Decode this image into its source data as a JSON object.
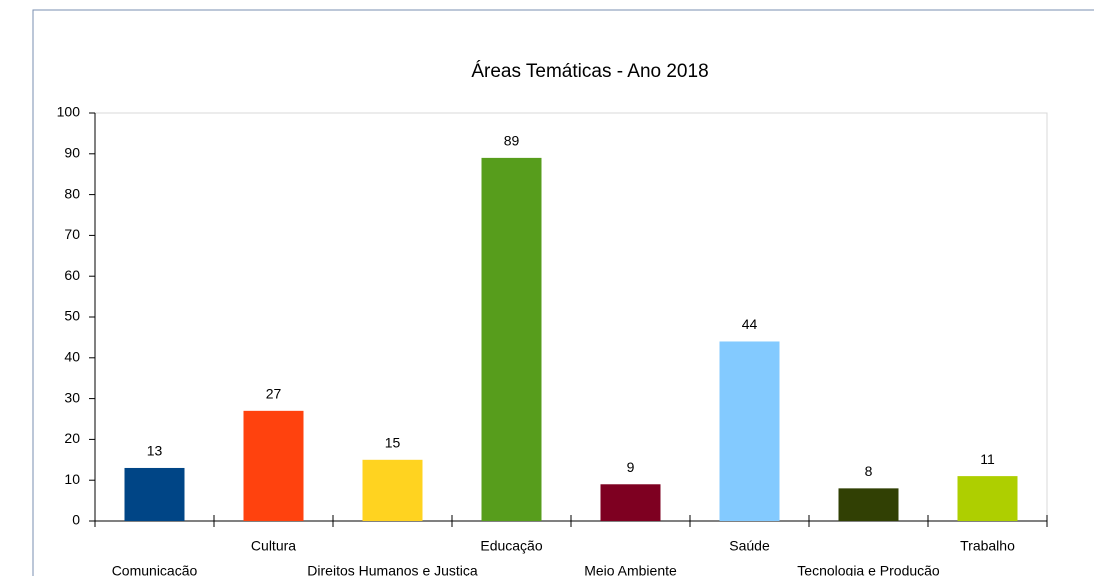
{
  "chart_data": {
    "type": "bar",
    "title": "Áreas Temáticas - Ano 2018",
    "categories": [
      "Comunicação",
      "Cultura",
      "Direitos Humanos e Justiça",
      "Educação",
      "Meio Ambiente",
      "Saúde",
      "Tecnologia e Produção",
      "Trabalho"
    ],
    "values": [
      13,
      27,
      15,
      89,
      9,
      44,
      8,
      11
    ],
    "colors": [
      "#004586",
      "#ff420e",
      "#ffd320",
      "#579d1c",
      "#7e0021",
      "#83caff",
      "#314004",
      "#aecf00"
    ],
    "ylim": [
      0,
      100
    ],
    "yticks": [
      0,
      10,
      20,
      30,
      40,
      50,
      60,
      70,
      80,
      90,
      100
    ],
    "grid": false
  }
}
